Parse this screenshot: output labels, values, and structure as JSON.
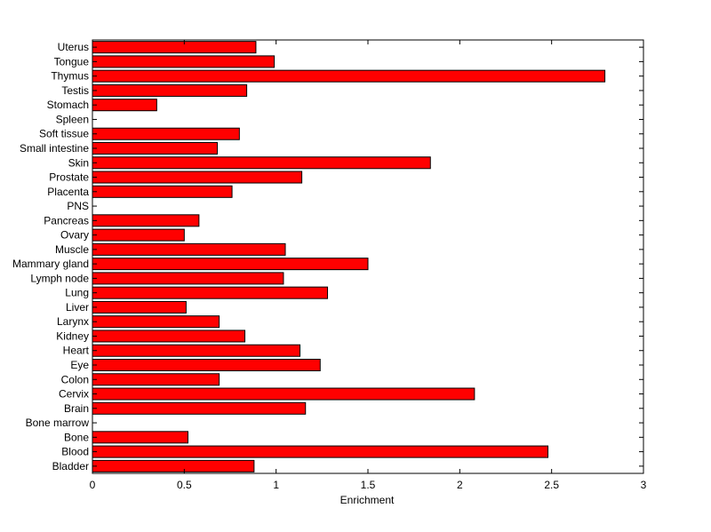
{
  "chart_data": {
    "type": "bar",
    "orientation": "horizontal",
    "categories": [
      "Bladder",
      "Blood",
      "Bone",
      "Bone marrow",
      "Brain",
      "Cervix",
      "Colon",
      "Eye",
      "Heart",
      "Kidney",
      "Larynx",
      "Liver",
      "Lung",
      "Lymph node",
      "Mammary gland",
      "Muscle",
      "Ovary",
      "Pancreas",
      "PNS",
      "Placenta",
      "Prostate",
      "Skin",
      "Small intestine",
      "Soft tissue",
      "Spleen",
      "Stomach",
      "Testis",
      "Thymus",
      "Tongue",
      "Uterus"
    ],
    "values": [
      0.88,
      2.48,
      0.52,
      0,
      1.16,
      2.08,
      0.69,
      1.24,
      1.13,
      0.83,
      0.69,
      0.51,
      1.28,
      1.04,
      1.5,
      1.05,
      0.5,
      0.58,
      0,
      0.76,
      1.14,
      1.84,
      0.68,
      0.8,
      0,
      0.35,
      0.84,
      2.79,
      0.99,
      0.89
    ],
    "xlabel": "Enrichment",
    "ylabel": "",
    "title": "",
    "xlim": [
      0,
      3
    ],
    "xticks": [
      0,
      0.5,
      1,
      1.5,
      2,
      2.5,
      3
    ],
    "xtick_labels": [
      "0",
      "0.5",
      "1",
      "1.5",
      "2",
      "2.5",
      "3"
    ],
    "grid": false,
    "bar_color": "#ff0000",
    "edge_color": "#000000"
  }
}
